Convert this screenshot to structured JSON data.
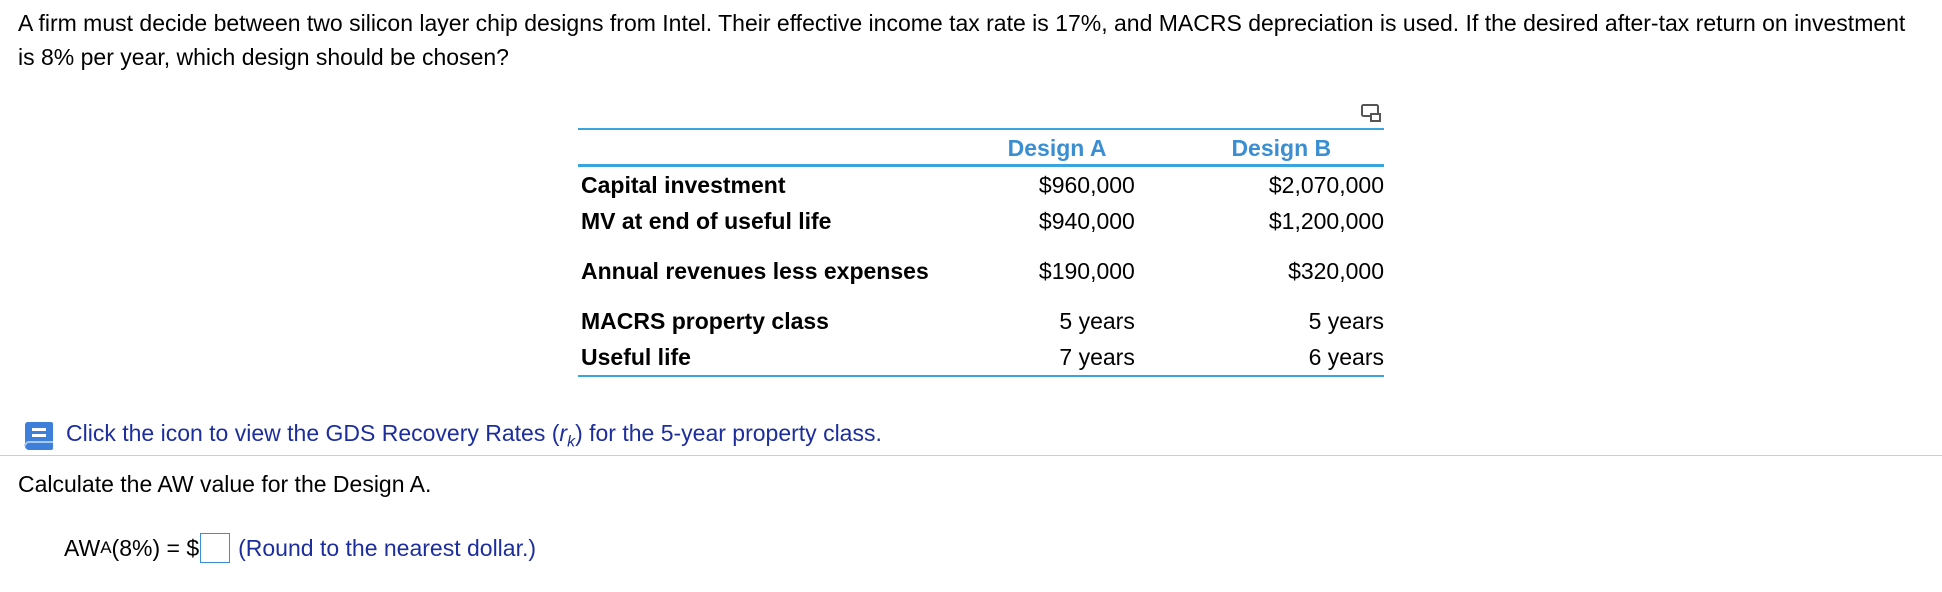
{
  "problem": {
    "text": "A firm must decide between two silicon layer chip designs from Intel. Their effective income tax rate is 17%, and MACRS depreciation is used. If the desired after-tax return on investment is 8% per year, which design should be chosen?"
  },
  "table": {
    "headers": [
      "",
      "Design A",
      "Design B"
    ],
    "rows": [
      {
        "label": "Capital investment",
        "a": "$960,000",
        "b": "$2,070,000"
      },
      {
        "label": "MV at end of useful life",
        "a": "$940,000",
        "b": "$1,200,000"
      },
      {
        "label": "Annual revenues less expenses",
        "a": "$190,000",
        "b": "$320,000"
      },
      {
        "label": "MACRS property class",
        "a": "5 years",
        "b": "5 years"
      },
      {
        "label": "Useful life",
        "a": "7 years",
        "b": "6 years"
      }
    ]
  },
  "hint": {
    "prefix": "Click the icon to view the GDS Recovery Rates (",
    "var": "r",
    "sub": "k",
    "suffix": ") for the 5-year property class."
  },
  "question": "Calculate the AW value for the Design A.",
  "answer": {
    "label_main": "AW",
    "label_sub": "A",
    "label_rest": "(8%) = $",
    "value": "",
    "note": "(Round to the nearest dollar.)"
  },
  "icons": {
    "copy": "copy-table-icon",
    "hint": "reference-book-icon"
  },
  "colors": {
    "accent_blue": "#3aa4de",
    "header_text": "#3a8ed1",
    "link_text": "#1c2e9e"
  }
}
